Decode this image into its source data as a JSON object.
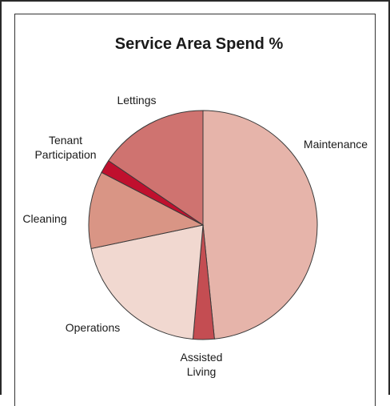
{
  "chart_data": {
    "type": "pie",
    "title": "Service Area Spend %",
    "start_angle_deg": 0,
    "direction": "clockwise",
    "slices": [
      {
        "label_lines": [
          "Maintenance"
        ],
        "value": 48.4,
        "color": "#e6b4aa"
      },
      {
        "label_lines": [
          "Assisted",
          "Living"
        ],
        "value": 3.0,
        "color": "#c44d52"
      },
      {
        "label_lines": [
          "Operations"
        ],
        "value": 20.3,
        "color": "#f1d8d0"
      },
      {
        "label_lines": [
          "Cleaning"
        ],
        "value": 10.9,
        "color": "#d99585"
      },
      {
        "label_lines": [
          "Tenant",
          "Participation"
        ],
        "value": 1.9,
        "color": "#c0102e"
      },
      {
        "label_lines": [
          "Lettings"
        ],
        "value": 15.5,
        "color": "#cf7370"
      }
    ]
  }
}
